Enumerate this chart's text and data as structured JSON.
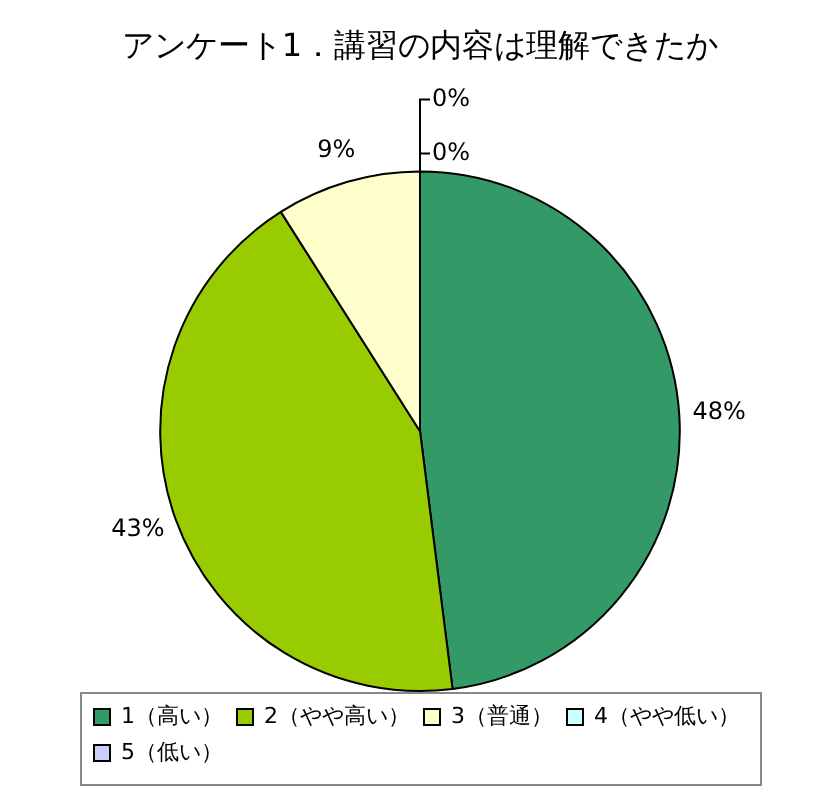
{
  "chart_data": {
    "type": "pie",
    "title": "アンケート1．講習の内容は理解できたか",
    "categories": [
      "1（高い）",
      "2（やや高い）",
      "3（普通）",
      "4（やや低い）",
      "5（低い）"
    ],
    "values": [
      48,
      43,
      9,
      0,
      0
    ],
    "colors": [
      "#339966",
      "#99cc00",
      "#ffffcc",
      "#ccffff",
      "#ccccff"
    ],
    "value_labels": [
      "48%",
      "43%",
      "9%",
      "0%",
      "0%"
    ],
    "legend": "bottom"
  }
}
